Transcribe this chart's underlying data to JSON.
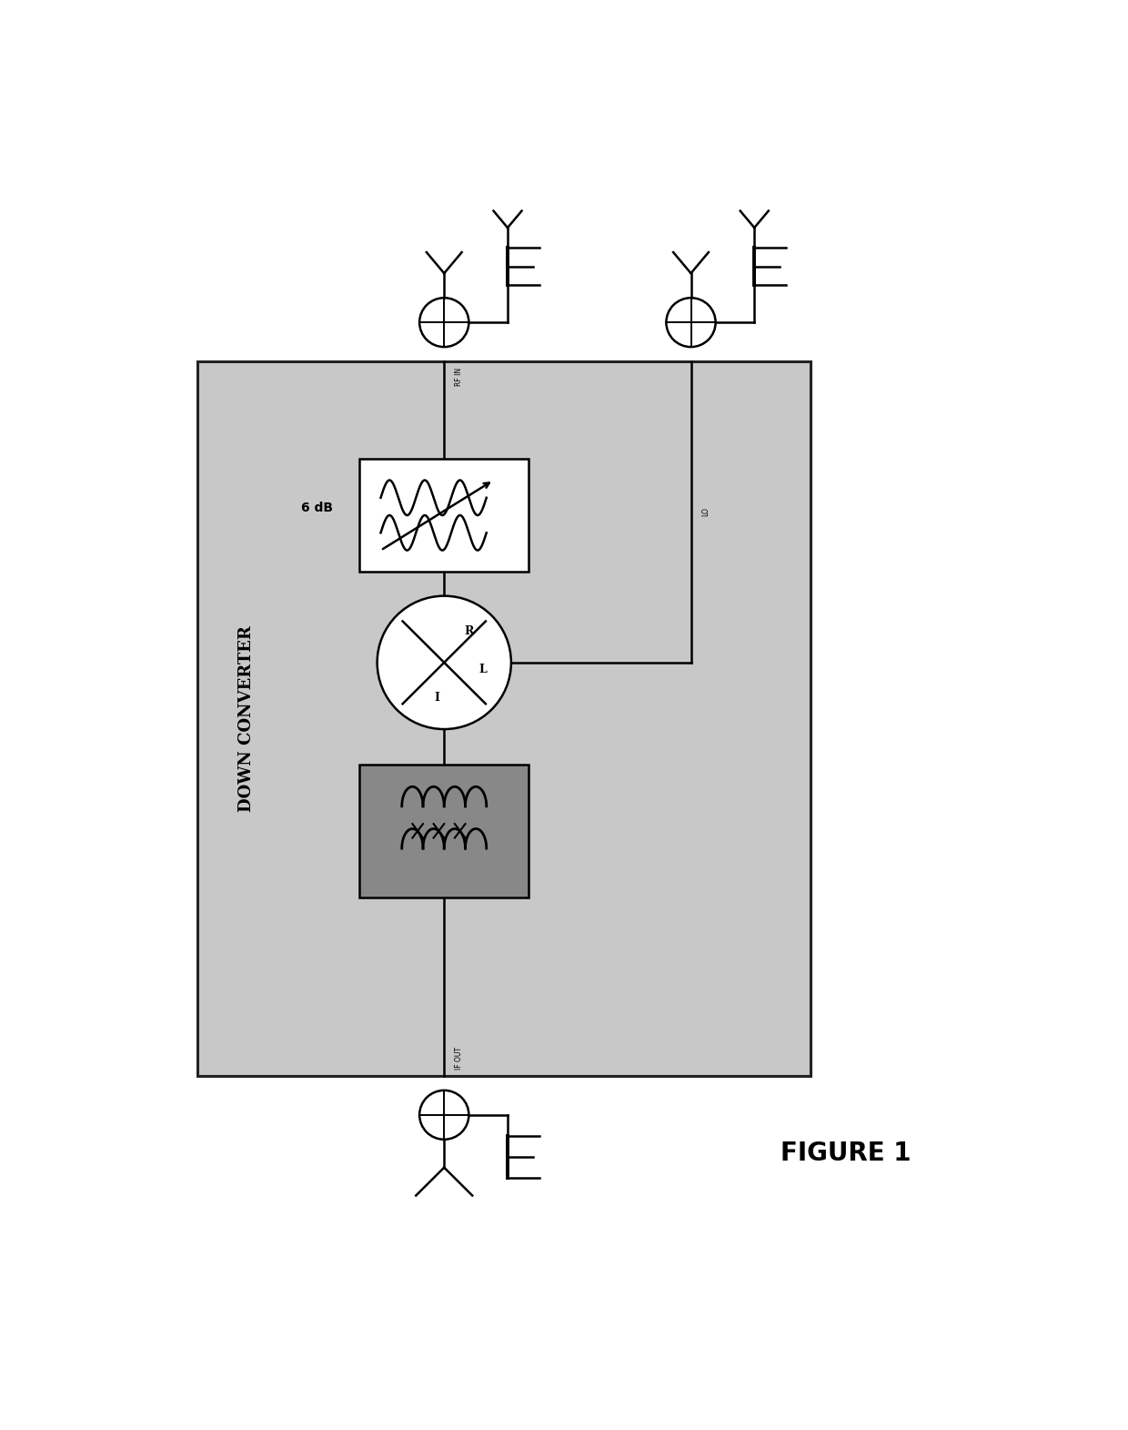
{
  "figure_width": 12.4,
  "figure_height": 15.71,
  "bg_color": "#ffffff",
  "box_color": "#c8c8c8",
  "box_edge_color": "#222222",
  "dark_box_color": "#888888",
  "title": "FIGURE 1",
  "title_fontsize": 24,
  "down_converter_label": "DOWN CONVERTER",
  "rf_in_label": "RF IN",
  "lo_label": "LO",
  "if_out_label": "IF OUT",
  "6db_label": "6 dB"
}
